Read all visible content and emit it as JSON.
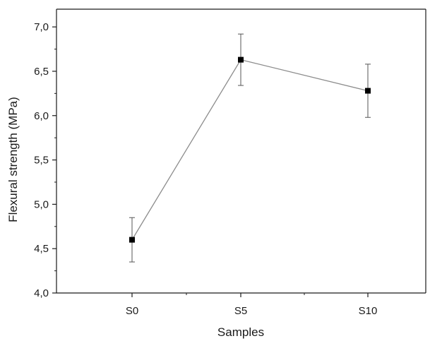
{
  "chart_data": {
    "type": "line",
    "title": "",
    "xlabel": "Samples",
    "ylabel": "Flexural strength (MPa)",
    "categories": [
      "S0",
      "S5",
      "S10"
    ],
    "series": [
      {
        "values": [
          4.6,
          6.63,
          6.28
        ],
        "error": [
          0.25,
          0.29,
          0.3
        ]
      }
    ],
    "ylim": [
      4.0,
      7.2
    ],
    "yticks": [
      {
        "value": 4.0,
        "label": "4,0"
      },
      {
        "value": 4.5,
        "label": "4,5"
      },
      {
        "value": 5.0,
        "label": "5,0"
      },
      {
        "value": 5.5,
        "label": "5,5"
      },
      {
        "value": 6.0,
        "label": "6,0"
      },
      {
        "value": 6.5,
        "label": "6,5"
      },
      {
        "value": 7.0,
        "label": "7,0"
      }
    ],
    "grid": false,
    "marker": "square",
    "colors": {
      "line": "#8c8c8c",
      "marker": "#000000",
      "axis": "#1a1a1a",
      "errorbar": "#555555"
    }
  }
}
